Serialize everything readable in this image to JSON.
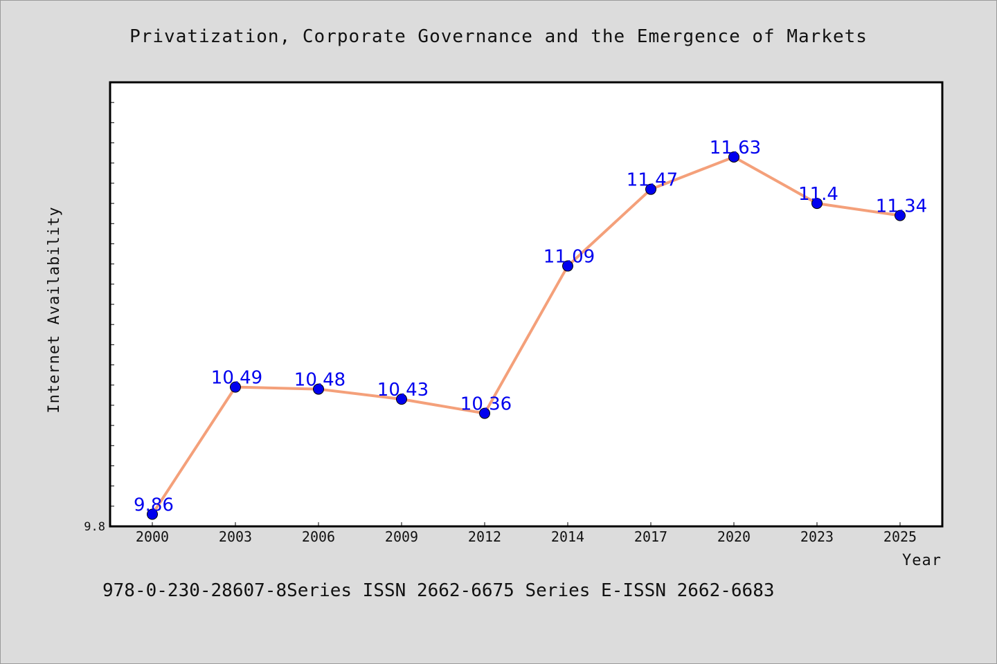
{
  "chart_data": {
    "type": "line",
    "title": "Privatization, Corporate Governance and the Emergence of Markets",
    "xlabel": "Year",
    "ylabel": "Internet Availability",
    "categories": [
      "2000",
      "2003",
      "2006",
      "2009",
      "2012",
      "2014",
      "2017",
      "2020",
      "2023",
      "2025"
    ],
    "series": [
      {
        "values": [
          9.86,
          10.49,
          10.48,
          10.43,
          10.36,
          11.09,
          11.47,
          11.63,
          11.4,
          11.34
        ],
        "line_color": "#f4a07a",
        "marker_color": "#0000ee"
      }
    ],
    "data_labels": [
      "9.86",
      "10.49",
      "10.48",
      "10.43",
      "10.36",
      "11.09",
      "11.47",
      "11.63",
      "11.4",
      "11.34"
    ],
    "ylim": [
      9.8,
      12.0
    ],
    "y_tick_label": "9.8",
    "grid": false,
    "legend": "none"
  },
  "footer": "978-0-230-28607-8Series ISSN 2662-6675 Series E-ISSN 2662-6683"
}
